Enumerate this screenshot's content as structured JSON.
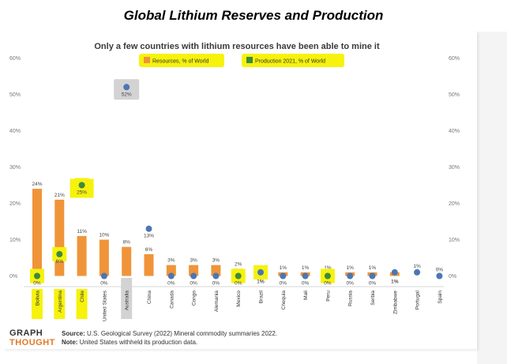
{
  "page_title": "Global Lithium Reserves and Production",
  "chart_data": {
    "type": "bar",
    "title": "Only a few countries with lithium resources have been able to mine it",
    "categories": [
      "Bolivia",
      "Argentina",
      "Chile",
      "United States",
      "Australia",
      "China",
      "Canada",
      "Congo",
      "Alemania",
      "Mexico",
      "Brazil",
      "Chequia",
      "Mali",
      "Peru",
      "Russia",
      "Serbia",
      "Zimbabwe",
      "Portugal",
      "Spain"
    ],
    "series": [
      {
        "name": "Resources, % of World",
        "kind": "bar",
        "color": "#f0943a",
        "values": [
          24,
          21,
          11,
          10,
          8,
          6,
          3,
          3,
          3,
          2,
          1,
          1,
          1,
          1,
          1,
          1,
          1,
          0,
          0
        ],
        "labels": [
          "24%",
          "21%",
          "11%",
          "10%",
          "8%",
          "6%",
          "3%",
          "3%",
          "3%",
          "2%",
          "1%",
          "1%",
          "1%",
          "1%",
          "1%",
          "1%",
          "1%",
          "",
          ""
        ]
      },
      {
        "name": "Production 2021, % of World",
        "kind": "dot",
        "values": [
          0,
          6,
          25,
          0,
          52,
          13,
          0,
          0,
          0,
          0,
          1,
          0,
          0,
          0,
          0,
          0,
          1,
          1,
          0
        ],
        "labels": [
          "0%",
          "6%",
          "25%",
          "0%",
          "52%",
          "13%",
          "0%",
          "0%",
          "0%",
          "0%",
          "1%",
          "0%",
          "0%",
          "0%",
          "0%",
          "0%",
          "1%",
          "1%",
          "0%"
        ],
        "colors": [
          "#3e8a3e",
          "#3e8a3e",
          "#3e8a3e",
          "#4a77b4",
          "#4a77b4",
          "#4a77b4",
          "#4a77b4",
          "#4a77b4",
          "#4a77b4",
          "#3e8a3e",
          "#4a77b4",
          "#4a77b4",
          "#4a77b4",
          "#3e8a3e",
          "#4a77b4",
          "#4a77b4",
          "#4a77b4",
          "#4a77b4",
          "#4a77b4"
        ]
      }
    ],
    "y_ticks": [
      "60%",
      "50%",
      "40%",
      "30%",
      "20%",
      "10%",
      "0%"
    ],
    "y_tick_values": [
      60,
      50,
      40,
      30,
      20,
      10,
      0
    ],
    "ylim": [
      0,
      60
    ],
    "highlighted_categories": [
      "Bolivia",
      "Argentina",
      "Chile",
      "Mexico",
      "Brazil",
      "Peru"
    ],
    "highlighted_labels": [
      "Bolivia",
      "Argentina",
      "Chile"
    ],
    "grey_highlight_categories": [
      "Australia"
    ],
    "legend_position": "top-center",
    "grid": false,
    "xlabel": "",
    "ylabel": ""
  },
  "footer": {
    "logo_line1": "GRAPH",
    "logo_line2": "THOUGHT",
    "source_label": "Source:",
    "source_text": "U.S. Geological Survey (2022) Mineral commodity summaries 2022.",
    "note_label": "Note:",
    "note_text": "United States withheld its production data."
  },
  "colors": {
    "bar": "#f0943a",
    "highlight": "#f6f20c",
    "dot_blue": "#4a77b4",
    "dot_green": "#3e8a3e",
    "grey_highlight": "#d3d3d3"
  }
}
